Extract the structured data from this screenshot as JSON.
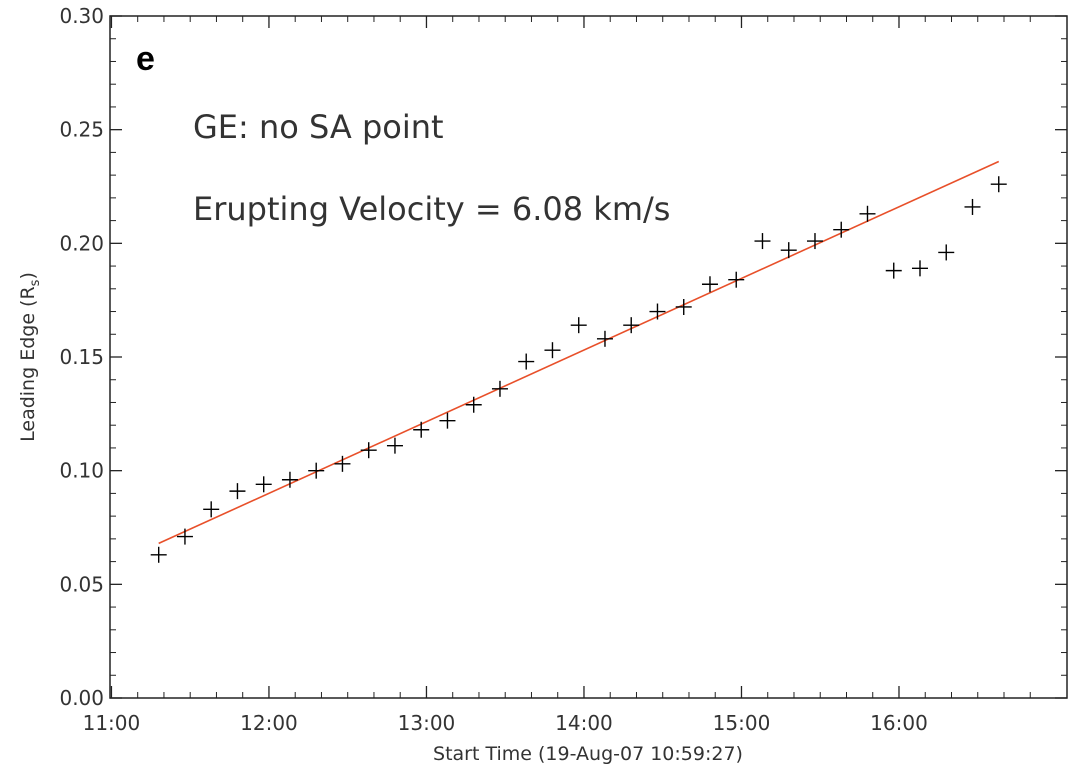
{
  "chart_data": {
    "type": "scatter",
    "panel_label": "e",
    "annotations": [
      "GE: no SA point",
      "Erupting Velocity = 6.08 km/s"
    ],
    "xlabel": "Start Time (19-Aug-07 10:59:27)",
    "ylabel_main": "Leading Edge (R",
    "ylabel_sub": "s",
    "ylabel_end": ")",
    "xlim": [
      "10:59:27",
      "17:04:00"
    ],
    "ylim": [
      0.0,
      0.3
    ],
    "x_tick_labels": [
      "11:00",
      "12:00",
      "13:00",
      "14:00",
      "15:00",
      "16:00"
    ],
    "y_tick_labels": [
      "0.00",
      "0.05",
      "0.10",
      "0.15",
      "0.20",
      "0.25",
      "0.30"
    ],
    "grid": false,
    "series": [
      {
        "marker": "plus",
        "color": "#000000",
        "x": [
          "11:18",
          "11:28",
          "11:38",
          "11:48",
          "11:58",
          "12:08",
          "12:18",
          "12:28",
          "12:38",
          "12:48",
          "12:58",
          "13:08",
          "13:18",
          "13:28",
          "13:38",
          "13:48",
          "13:58",
          "14:08",
          "14:18",
          "14:28",
          "14:38",
          "14:48",
          "14:58",
          "15:08",
          "15:18",
          "15:28",
          "15:38",
          "15:48",
          "15:58",
          "16:08",
          "16:18",
          "16:28",
          "16:38"
        ],
        "y": [
          0.063,
          0.071,
          0.083,
          0.091,
          0.094,
          0.096,
          0.1,
          0.103,
          0.109,
          0.111,
          0.118,
          0.122,
          0.129,
          0.136,
          0.148,
          0.153,
          0.164,
          0.158,
          0.164,
          0.17,
          0.172,
          0.182,
          0.184,
          0.201,
          0.197,
          0.201,
          0.206,
          0.213,
          0.188,
          0.189,
          0.196,
          0.216,
          0.226
        ]
      },
      {
        "type": "line",
        "color": "#e8502a",
        "x": [
          "11:18",
          "16:38"
        ],
        "y": [
          0.068,
          0.236
        ]
      }
    ]
  }
}
